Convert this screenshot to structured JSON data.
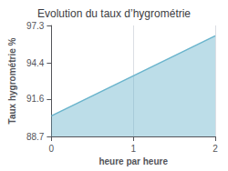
{
  "chart_data": {
    "type": "area",
    "title": "Evolution du taux d’hygrométrie",
    "xlabel": "heure par heure",
    "ylabel": "Taux hygrométrie %",
    "x": [
      0,
      2
    ],
    "values": [
      90.3,
      96.5
    ],
    "color": "#6ab4cc",
    "xlim": [
      0,
      2
    ],
    "xticks": [
      0,
      1,
      2
    ],
    "ylim": [
      88.7,
      97.3
    ],
    "yticks": [
      88.7,
      91.6,
      94.4,
      97.3
    ],
    "grid": "x"
  }
}
